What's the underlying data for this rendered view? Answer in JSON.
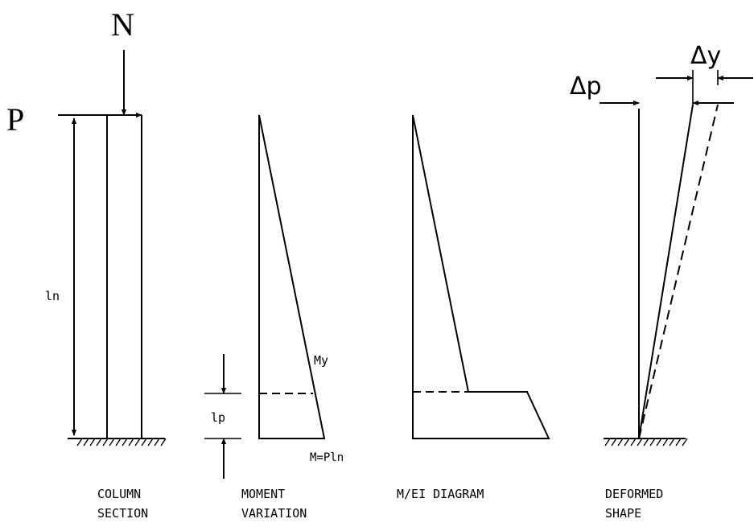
{
  "column_section": {
    "load_n": "N",
    "load_p": "P",
    "length_label": "ln",
    "caption_line1": "COLUMN",
    "caption_line2": "SECTION"
  },
  "moment_variation": {
    "yield_label": "My",
    "plastic_length_label": "lp",
    "base_moment_label": "M=Pln",
    "caption_line1": "MOMENT",
    "caption_line2": "VARIATION"
  },
  "curvature_diagram": {
    "caption_line1": "M/EI DIAGRAM"
  },
  "deformed_shape": {
    "plastic_disp_label": "Δp",
    "yield_disp_label": "Δy",
    "caption_line1": "DEFORMED",
    "caption_line2": "SHAPE"
  }
}
